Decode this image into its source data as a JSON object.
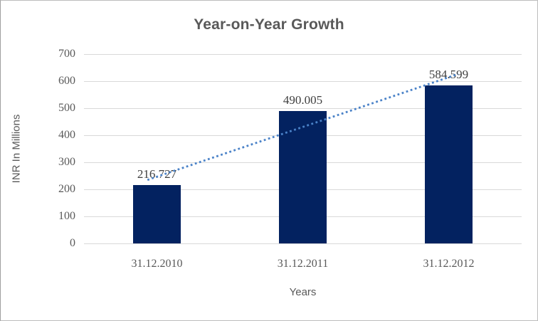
{
  "window": {
    "background": "#ffffff",
    "border_color": "#bdbdbd"
  },
  "chart_data": {
    "type": "bar",
    "title": "Year-on-Year Growth",
    "xlabel": "Years",
    "ylabel": "INR In Millions",
    "categories": [
      "31.12.2010",
      "31.12.2011",
      "31.12.2012"
    ],
    "values": [
      216.727,
      490.005,
      584.599
    ],
    "data_labels": [
      "216.727",
      "490.005",
      "584.599"
    ],
    "y_ticks": [
      0,
      100,
      200,
      300,
      400,
      500,
      600,
      700
    ],
    "ylim": [
      0,
      700
    ],
    "grid": true,
    "legend": "none",
    "trendline": {
      "type": "linear",
      "style": "dotted",
      "color": "#4a82c8"
    },
    "colors": {
      "bar": "#032260",
      "gridline": "#d9d9d9",
      "axis_text": "#595959",
      "data_label_text": "#3f3f3f",
      "title_text": "#595959"
    }
  }
}
